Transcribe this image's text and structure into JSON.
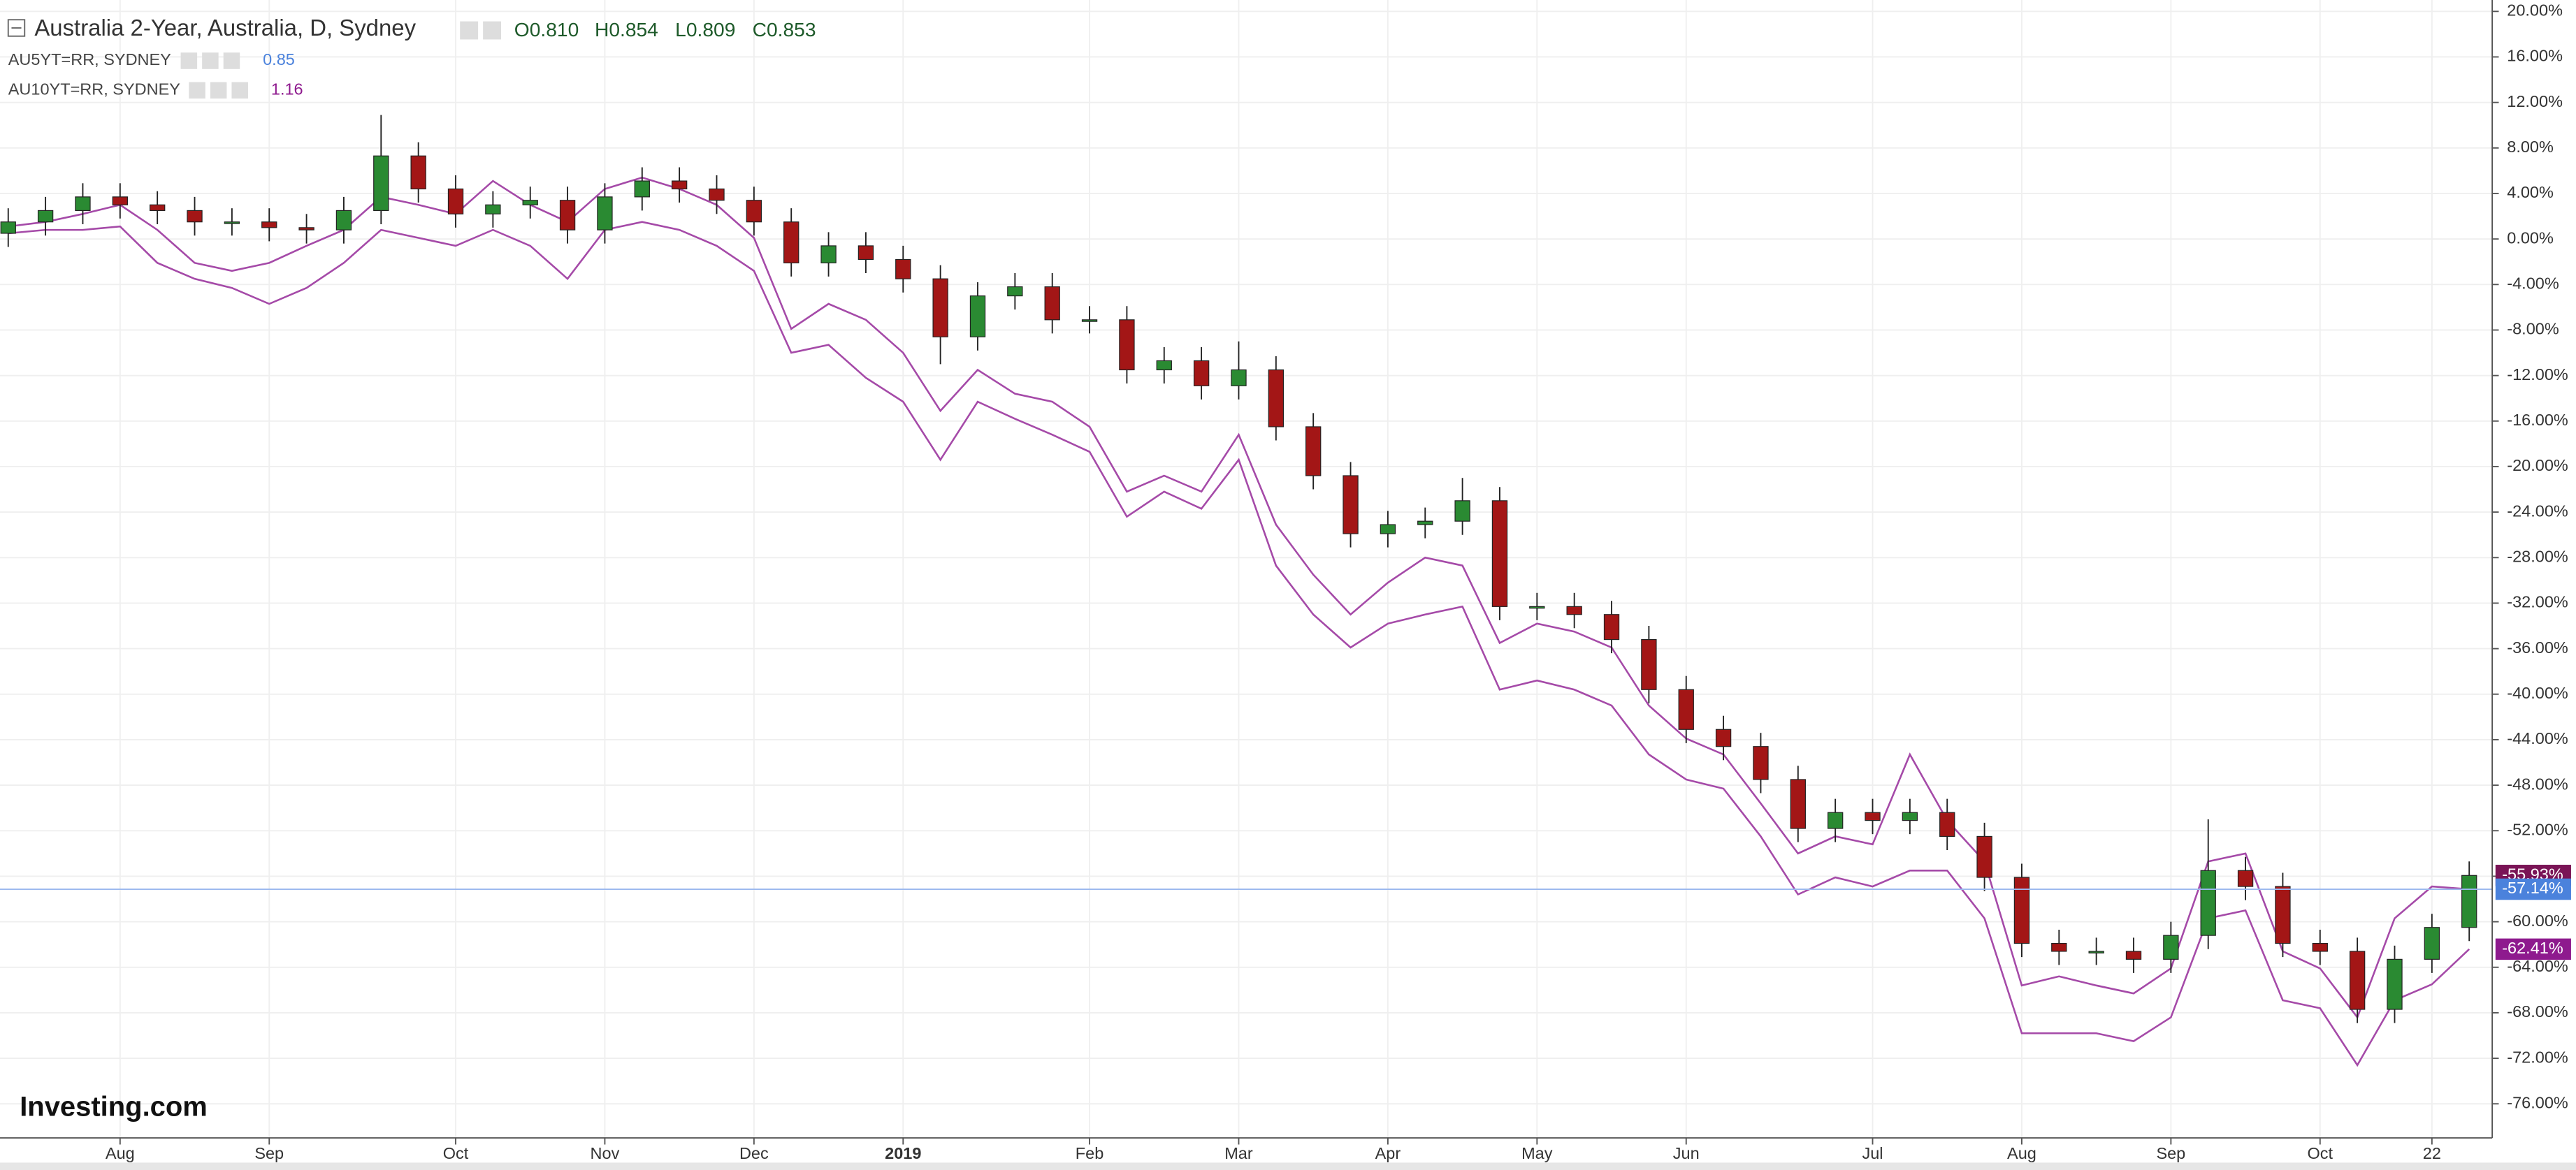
{
  "chart_data": {
    "type": "candlestick",
    "title": "Australia 2-Year, Australia, D, Sydney",
    "ohlc_legend": [
      "O0.810",
      "H0.854",
      "L0.809",
      "C0.853"
    ],
    "logo": "Investing.com",
    "categories": [
      null,
      null,
      null,
      "Aug",
      null,
      null,
      null,
      "Sep",
      null,
      null,
      null,
      null,
      "Oct",
      null,
      null,
      null,
      "Nov",
      null,
      null,
      null,
      "Dec",
      null,
      null,
      null,
      "2019",
      null,
      null,
      null,
      null,
      "Feb",
      null,
      null,
      null,
      "Mar",
      null,
      null,
      null,
      "Apr",
      null,
      null,
      null,
      "May",
      null,
      null,
      null,
      "Jun",
      null,
      null,
      null,
      null,
      "Jul",
      null,
      null,
      null,
      "Aug",
      null,
      null,
      null,
      "Sep",
      null,
      null,
      null,
      "Oct",
      null,
      null,
      "22",
      null
    ],
    "open": [
      0.5,
      1.5,
      2.5,
      3.7,
      3,
      2.5,
      1.5,
      1.5,
      1,
      0.8,
      2.5,
      7.3,
      4.4,
      2.2,
      3,
      3.4,
      0.8,
      3.7,
      5.1,
      4.4,
      3.4,
      1.5,
      -2.1,
      -0.6,
      -1.8,
      -3.5,
      -8.6,
      -5,
      -4.2,
      -7.1,
      -7.1,
      -11.5,
      -10.7,
      -12.9,
      -11.5,
      -16.5,
      -20.8,
      -25.9,
      -25.1,
      -24.8,
      -23,
      -32.3,
      -32.3,
      -33,
      -35.2,
      -39.6,
      -43.1,
      -44.6,
      -47.5,
      -51.8,
      -50.4,
      -51.1,
      -50.4,
      -52.5,
      -56.1,
      -61.9,
      -62.6,
      -62.6,
      -63.3,
      -61.2,
      -55.5,
      -56.9,
      -61.9,
      -62.6,
      -67.7,
      -63.3,
      -60.5
    ],
    "high": [
      2.7,
      3.7,
      4.9,
      4.9,
      4.2,
      3.7,
      2.7,
      2.7,
      2.2,
      3.7,
      10.9,
      8.5,
      5.6,
      4.2,
      4.6,
      4.6,
      4.9,
      6.3,
      6.3,
      5.6,
      4.6,
      2.7,
      0.6,
      0.6,
      -0.6,
      -2.3,
      -3.8,
      -3,
      -3,
      -5.9,
      -5.9,
      -9.5,
      -9.5,
      -9,
      -10.3,
      -15.3,
      -19.6,
      -23.9,
      -23.6,
      -21,
      -21.8,
      -31.1,
      -31.1,
      -31.8,
      -34,
      -38.4,
      -41.9,
      -43.4,
      -46.3,
      -49.2,
      -49.2,
      -49.2,
      -49.2,
      -51.3,
      -54.9,
      -60.7,
      -61.4,
      -61.4,
      -60,
      -51,
      -54.3,
      -55.7,
      -60.7,
      -61.4,
      -62.1,
      -59.3,
      -54.7
    ],
    "low": [
      -0.7,
      0.3,
      1.3,
      1.8,
      1.3,
      0.3,
      0.3,
      -0.2,
      -0.4,
      -0.4,
      1.3,
      3.2,
      1,
      1,
      1.8,
      -0.4,
      -0.4,
      2.5,
      3.2,
      2.2,
      0.3,
      -3.3,
      -3.3,
      -3,
      -4.7,
      -11,
      -9.8,
      -6.2,
      -8.3,
      -8.3,
      -12.7,
      -12.7,
      -14.1,
      -14.1,
      -17.7,
      -22,
      -27.1,
      -27.1,
      -26.3,
      -26,
      -33.5,
      -33.5,
      -34.2,
      -36.4,
      -40.8,
      -44.3,
      -45.8,
      -48.7,
      -53,
      -53,
      -52.3,
      -52.3,
      -53.7,
      -57.3,
      -63.1,
      -63.8,
      -63.8,
      -64.5,
      -64.5,
      -62.4,
      -58.1,
      -63.1,
      -63.8,
      -68.9,
      -68.9,
      -64.5,
      -61.7
    ],
    "close": [
      1.5,
      2.5,
      3.7,
      3,
      2.5,
      1.5,
      1.5,
      1,
      0.8,
      2.5,
      7.3,
      4.4,
      2.2,
      3,
      3.4,
      0.8,
      3.7,
      5.1,
      4.4,
      3.4,
      1.5,
      -2.1,
      -0.6,
      -1.8,
      -3.5,
      -8.6,
      -5,
      -4.2,
      -7.1,
      -7.1,
      -11.5,
      -10.7,
      -12.9,
      -11.5,
      -16.5,
      -20.8,
      -25.9,
      -25.1,
      -24.8,
      -23,
      -32.3,
      -32.3,
      -33,
      -35.2,
      -39.6,
      -43.1,
      -44.6,
      -47.5,
      -51.8,
      -50.4,
      -51.1,
      -50.4,
      -52.5,
      -56.1,
      -61.9,
      -62.6,
      -62.6,
      -63.3,
      -61.2,
      -55.5,
      -56.9,
      -61.9,
      -62.6,
      -67.7,
      -63.3,
      -60.5,
      -55.93
    ],
    "up_color": "#2a8a32",
    "down_color": "#a31616",
    "last_label": {
      "value": -55.93,
      "label": "-55.93%"
    },
    "last_label_color": "#7a1456",
    "series": [
      {
        "name": "AU5YT=RR, SYDNEY",
        "legend_value": 0.85,
        "color": "#a54aa8",
        "label_color": "#4b82dc",
        "last_label": {
          "value": -57.14,
          "label": "-57.14%"
        },
        "values": [
          1.1,
          1.5,
          2.2,
          3,
          0.8,
          -2.1,
          -2.8,
          -2.1,
          -0.6,
          0.8,
          3.7,
          3,
          2.2,
          5.1,
          3,
          1.5,
          4.4,
          5.4,
          4.4,
          3,
          0.1,
          -7.9,
          -5.7,
          -7.1,
          -10,
          -15.1,
          -11.5,
          -13.6,
          -14.3,
          -16.5,
          -22.2,
          -20.8,
          -22.2,
          -17.2,
          -25.1,
          -29.5,
          -33,
          -30.2,
          -28,
          -28.7,
          -35.5,
          -33.8,
          -34.5,
          -35.9,
          -41,
          -43.9,
          -45.3,
          -49.6,
          -54,
          -52.5,
          -53.2,
          -45.3,
          -51.1,
          -54.7,
          -65.6,
          -64.8,
          -65.6,
          -66.3,
          -64.1,
          -54.7,
          -54,
          -62.6,
          -64.1,
          -68.4,
          -59.7,
          -56.9,
          -57.14
        ]
      },
      {
        "name": "AU10YT=RR, SYDNEY",
        "legend_value": 1.16,
        "color": "#a54aa8",
        "label_color": "#8e1a8e",
        "last_label": {
          "value": -62.41,
          "label": "-62.41%"
        },
        "values": [
          0.5,
          0.8,
          0.8,
          1.1,
          -2.1,
          -3.5,
          -4.3,
          -5.7,
          -4.3,
          -2.1,
          0.8,
          0.1,
          -0.6,
          0.8,
          -0.6,
          -3.5,
          0.8,
          1.5,
          0.8,
          -0.6,
          -2.8,
          -10,
          -9.3,
          -12.2,
          -14.3,
          -19.4,
          -14.3,
          -15.8,
          -17.2,
          -18.7,
          -24.4,
          -22.2,
          -23.7,
          -19.4,
          -28.7,
          -33,
          -35.9,
          -33.8,
          -33,
          -32.3,
          -39.6,
          -38.8,
          -39.6,
          -41,
          -45.3,
          -47.5,
          -48.3,
          -52.5,
          -57.6,
          -56.1,
          -56.9,
          -55.5,
          -55.5,
          -59.7,
          -69.8,
          -69.8,
          -69.8,
          -70.5,
          -68.4,
          -59.7,
          -59,
          -66.9,
          -67.6,
          -72.6,
          -66.9,
          -65.5,
          -62.41
        ]
      }
    ],
    "ylim": [
      -79,
      21
    ],
    "yticks": [
      {
        "value": 20,
        "label": "20.00%"
      },
      {
        "value": 16,
        "label": "16.00%"
      },
      {
        "value": 12,
        "label": "12.00%"
      },
      {
        "value": 8,
        "label": "8.00%"
      },
      {
        "value": 4,
        "label": "4.00%"
      },
      {
        "value": 0,
        "label": "0.00%"
      },
      {
        "value": -4,
        "label": "-4.00%"
      },
      {
        "value": -8,
        "label": "-8.00%"
      },
      {
        "value": -12,
        "label": "-12.00%"
      },
      {
        "value": -16,
        "label": "-16.00%"
      },
      {
        "value": -20,
        "label": "-20.00%"
      },
      {
        "value": -24,
        "label": "-24.00%"
      },
      {
        "value": -28,
        "label": "-28.00%"
      },
      {
        "value": -32,
        "label": "-32.00%"
      },
      {
        "value": -36,
        "label": "-36.00%"
      },
      {
        "value": -40,
        "label": "-40.00%"
      },
      {
        "value": -44,
        "label": "-44.00%"
      },
      {
        "value": -48,
        "label": "-48.00%"
      },
      {
        "value": -52,
        "label": "-52.00%"
      },
      {
        "value": -56,
        "label": "-56.00%"
      },
      {
        "value": -60,
        "label": "-60.00%"
      },
      {
        "value": -64,
        "label": "-64.00%"
      },
      {
        "value": -68,
        "label": "-68.00%"
      },
      {
        "value": -72,
        "label": "-72.00%"
      },
      {
        "value": -76,
        "label": "-76.00%"
      }
    ],
    "grid": true
  }
}
